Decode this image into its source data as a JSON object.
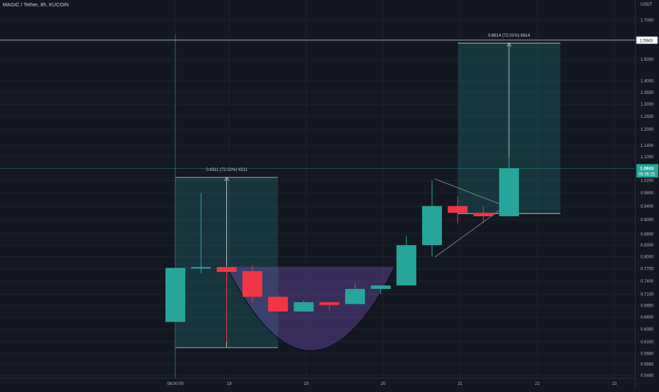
{
  "header": {
    "symbol_line": "MAGIC / Tether, 8h, KUCOIN"
  },
  "price_axis": {
    "unit": "USDT",
    "ticks": [
      "1.7000",
      "1.6000",
      "1.5000",
      "1.4000",
      "1.3500",
      "1.3000",
      "1.2500",
      "1.2000",
      "1.1400",
      "1.1000",
      "1.0200",
      "0.9800",
      "0.9400",
      "0.9000",
      "0.8600",
      "0.8300",
      "0.8000",
      "0.7700",
      "0.7400",
      "0.7100",
      "0.6850",
      "0.6600",
      "0.6350",
      "0.6100",
      "0.5880",
      "0.5680",
      "0.5480"
    ],
    "target_tag": "1.5943",
    "current_price": "1.0600",
    "countdown": "05:36:25"
  },
  "time_axis": {
    "ticks": [
      {
        "slot": 0,
        "label": "08:00:00"
      },
      {
        "slot": 2.1,
        "label": "18"
      },
      {
        "slot": 5.1,
        "label": "19"
      },
      {
        "slot": 8.1,
        "label": "20"
      },
      {
        "slot": 11.1,
        "label": "21"
      },
      {
        "slot": 14.1,
        "label": "22"
      },
      {
        "slot": 17.1,
        "label": "23"
      }
    ]
  },
  "chart_data": {
    "type": "candlestick",
    "title": "MAGIC / Tether, 8h, KUCOIN",
    "ylabel": "USDT",
    "colors": {
      "up": "#26a69a",
      "down": "#f23645",
      "grid": "#1e222d",
      "axis_text": "#b2b5be"
    },
    "candles": [
      {
        "slot": 0,
        "open": 0.65,
        "high": 0.772,
        "low": 0.65,
        "close": 0.772,
        "dir": "up"
      },
      {
        "slot": 1,
        "open": 0.772,
        "high": 0.98,
        "low": 0.758,
        "close": 0.774,
        "dir": "up"
      },
      {
        "slot": 2,
        "open": 0.774,
        "high": 0.776,
        "low": 0.61,
        "close": 0.762,
        "dir": "down"
      },
      {
        "slot": 3,
        "open": 0.764,
        "high": 0.779,
        "low": 0.692,
        "close": 0.704,
        "dir": "down"
      },
      {
        "slot": 4,
        "open": 0.704,
        "high": 0.708,
        "low": 0.672,
        "close": 0.672,
        "dir": "down"
      },
      {
        "slot": 5,
        "open": 0.672,
        "high": 0.696,
        "low": 0.672,
        "close": 0.692,
        "dir": "up"
      },
      {
        "slot": 6,
        "open": 0.692,
        "high": 0.693,
        "low": 0.674,
        "close": 0.686,
        "dir": "down"
      },
      {
        "slot": 7,
        "open": 0.688,
        "high": 0.735,
        "low": 0.688,
        "close": 0.722,
        "dir": "up"
      },
      {
        "slot": 8,
        "open": 0.722,
        "high": 0.731,
        "low": 0.71,
        "close": 0.73,
        "dir": "up"
      },
      {
        "slot": 9,
        "open": 0.73,
        "high": 0.855,
        "low": 0.73,
        "close": 0.83,
        "dir": "up"
      },
      {
        "slot": 10,
        "open": 0.83,
        "high": 1.02,
        "low": 0.8,
        "close": 0.94,
        "dir": "up"
      },
      {
        "slot": 11,
        "open": 0.94,
        "high": 0.97,
        "low": 0.89,
        "close": 0.92,
        "dir": "down"
      },
      {
        "slot": 12,
        "open": 0.92,
        "high": 0.94,
        "low": 0.89,
        "close": 0.91,
        "dir": "down"
      },
      {
        "slot": 13,
        "open": 0.91,
        "high": 1.1,
        "low": 0.91,
        "close": 1.06,
        "dir": "up"
      }
    ],
    "measurements": [
      {
        "label": "0.4311 (72.02%) 4311",
        "slot_start": 0,
        "slot_end": 4,
        "price_from": 0.599,
        "price_to": 1.03
      },
      {
        "label": "0.6614 (72.01%) 6614",
        "slot_start": 11,
        "slot_end": 15,
        "price_from": 0.918,
        "price_to": 1.5794
      }
    ],
    "cup": {
      "slot_start": 2,
      "slot_end": 8.55,
      "rim_price": 0.775,
      "bottom_price": 0.593
    },
    "triangle": {
      "apex_slot": 10,
      "top_price": 1.025,
      "bottom_price": 0.799,
      "tip_slot": 12.85,
      "tip_price": 0.94
    },
    "current_price": 1.06,
    "target_price": 1.5943
  }
}
